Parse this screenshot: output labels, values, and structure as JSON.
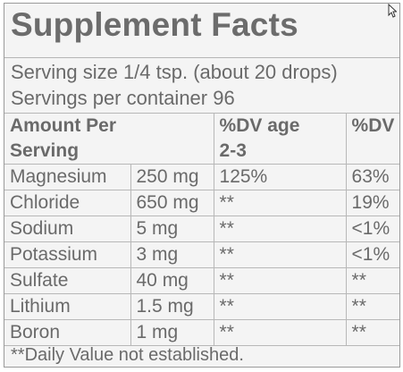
{
  "title": "Supplement Facts",
  "serving_size": "Serving size 1/4 tsp. (about 20 drops)",
  "servings_per_container": "Servings per container 96",
  "table": {
    "header_amount": "Amount Per Serving",
    "header_amount_line1": "Amount Per",
    "header_amount_line2": "Serving",
    "header_dv_child_line1": "%DV age",
    "header_dv_child_line2": "2-3",
    "header_dv": "%DV",
    "rows": [
      {
        "nutrient": "Magnesium",
        "amount": "250 mg",
        "dv_child": "125%",
        "dv": "63%"
      },
      {
        "nutrient": "Chloride",
        "amount": "650 mg",
        "dv_child": "**",
        "dv": "19%"
      },
      {
        "nutrient": "Sodium",
        "amount": "5 mg",
        "dv_child": "**",
        "dv": "<1%"
      },
      {
        "nutrient": "Potassium",
        "amount": "3 mg",
        "dv_child": "**",
        "dv": "<1%"
      },
      {
        "nutrient": "Sulfate",
        "amount": "40 mg",
        "dv_child": "**",
        "dv": "**"
      },
      {
        "nutrient": "Lithium",
        "amount": "1.5 mg",
        "dv_child": "**",
        "dv": "**"
      },
      {
        "nutrient": "Boron",
        "amount": "1 mg",
        "dv_child": "**",
        "dv": "**"
      }
    ]
  },
  "footnote": "**Daily Value not established.",
  "icons": {
    "cursor": "arrow-cursor-icon"
  }
}
